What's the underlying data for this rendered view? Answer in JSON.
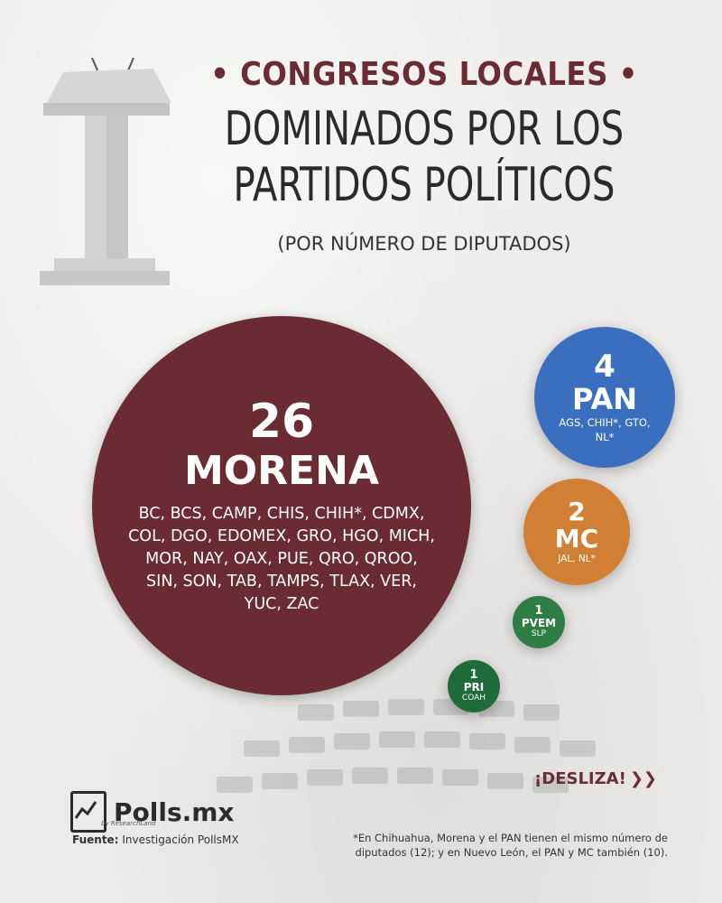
{
  "header": {
    "top_line": "• CONGRESOS LOCALES •",
    "main_line1": "DOMINADOS POR LOS",
    "main_line2": "PARTIDOS POLÍTICOS",
    "subtitle": "(POR NÚMERO DE DIPUTADOS)"
  },
  "chart_data": {
    "type": "bubble",
    "title": "CONGRESOS LOCALES DOMINADOS POR LOS PARTIDOS POLÍTICOS",
    "subtitle": "(POR NÚMERO DE DIPUTADOS)",
    "series": [
      {
        "party": "MORENA",
        "value": 26,
        "states": "BC, BCS, CAMP, CHIS, CHIH*, CDMX, COL, DGO, EDOMEX, GRO, HGO, MICH, MOR, NAY, OAX, PUE, QRO, QROO, SIN, SON, TAB, TAMPS, TLAX, VER, YUC, ZAC",
        "color": "#6b2b33"
      },
      {
        "party": "PAN",
        "value": 4,
        "states": "AGS, CHIH*, GTO, NL*",
        "color": "#3a6fc0"
      },
      {
        "party": "MC",
        "value": 2,
        "states": "JAL, NL*",
        "color": "#d17f33"
      },
      {
        "party": "PVEM",
        "value": 1,
        "states": "SLP",
        "color": "#2e7d45"
      },
      {
        "party": "PRI",
        "value": 1,
        "states": "COAH",
        "color": "#1f6b3a"
      }
    ]
  },
  "cta": "¡DESLIZA!",
  "logo": {
    "name": "Polls.mx",
    "tagline": "by ResearchLand"
  },
  "footer": {
    "source_label": "Fuente:",
    "source_text": "Investigación PollsMX",
    "note": "*En Chihuahua, Morena y el PAN tienen el mismo número de diputados (12); y en Nuevo León, el PAN y MC también (10)."
  }
}
